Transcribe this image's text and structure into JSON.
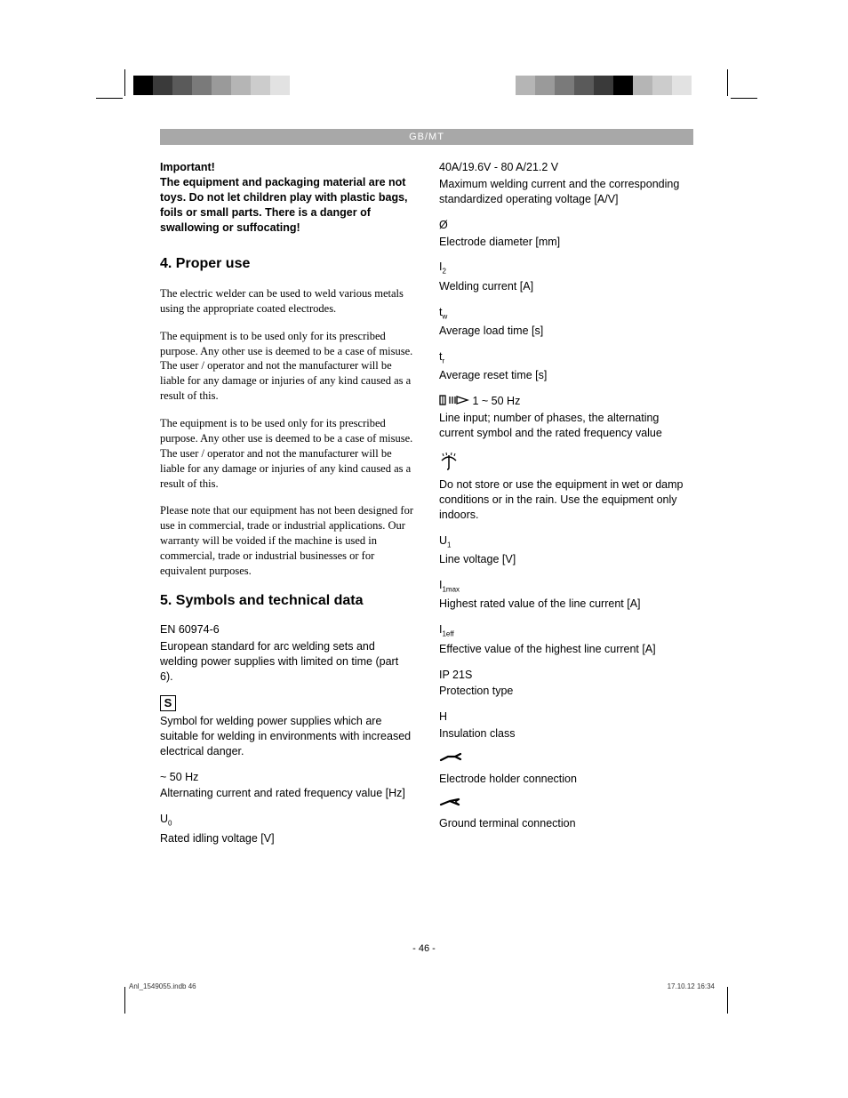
{
  "header": {
    "label": "GB/MT"
  },
  "warning": {
    "title": "Important!",
    "body": "The equipment and packaging material are not toys. Do not let children play with plastic bags, foils or small parts. There is a danger of swallowing or suffocating!"
  },
  "section4": {
    "heading": "4. Proper use",
    "p1": "The electric welder can be used to weld various metals using the appropriate coated electrodes.",
    "p2": "The equipment is to be used only for its prescribed purpose. Any other use is deemed to be a case of misuse. The user / operator and not the manufacturer will be liable for any damage or injuries of any kind caused as a result of this.",
    "p3": "The equipment is to be used only for its prescribed purpose. Any other use is deemed to be a case of misuse. The user / operator and not the manufacturer will be liable for any damage or injuries of any kind caused as a result of this.",
    "p4": "Please note that our equipment has not been designed for use in commercial, trade or industrial applications. Our warranty will be voided if the machine is used in commercial, trade or industrial businesses or for equivalent purposes."
  },
  "section5": {
    "heading": "5. Symbols and technical data",
    "en_label": "EN 60974-6",
    "en_desc": "European standard for arc welding sets and welding power supplies with limited on time (part 6).",
    "s_desc": "Symbol for welding power supplies which are suitable for welding in environments with increased electrical danger.",
    "hz_label": "~ 50 Hz",
    "hz_desc": "Alternating current and rated frequency value [Hz]",
    "u0_label": "U",
    "u0_sub": "0",
    "u0_desc": "Rated idling voltage [V]",
    "range_label": "40A/19.6V - 80 A/21.2 V",
    "range_desc": "Maximum welding current and the corresponding standardized operating voltage [A/V]",
    "dia_label": "Ø",
    "dia_desc": "Electrode diameter [mm]",
    "i2_label": "I",
    "i2_sub": "2",
    "i2_desc": "Welding current [A]",
    "tw_label": "t",
    "tw_sub": "w",
    "tw_desc": "Average load time [s]",
    "tr_label": "t",
    "tr_sub": "r",
    "tr_desc": "Average reset time [s]",
    "phase_label": " 1 ~ 50 Hz",
    "phase_desc": "Line input; number of phases, the alternating current symbol and the rated frequency value",
    "rain_desc": "Do not store or use the equipment in wet or damp conditions or in the rain. Use the equipment only indoors.",
    "u1_label": "U",
    "u1_sub": "1",
    "u1_desc": "Line voltage [V]",
    "i1max_label": "I",
    "i1max_sub": "1max",
    "i1max_desc": "Highest rated value of the line current [A]",
    "i1eff_label": "I",
    "i1eff_sub": "1eff",
    "i1eff_desc": "Effective value of the highest line current [A]",
    "ip_label": "IP 21S",
    "ip_desc": "Protection type",
    "h_label": "H",
    "h_desc": "Insulation class",
    "holder_desc": "Electrode holder connection",
    "ground_desc": "Ground terminal connection"
  },
  "footer": {
    "page": "- 46 -",
    "left": "Anl_1549055.indb   46",
    "right": "17.10.12   16:34"
  },
  "colorbars": {
    "left": [
      "#000000",
      "#3a3a3a",
      "#5a5a5a",
      "#7a7a7a",
      "#9a9a9a",
      "#b5b5b5",
      "#cccccc",
      "#e2e2e2",
      "#ffffff",
      "#ffffff"
    ],
    "right": [
      "#ffffff",
      "#b5b5b5",
      "#9a9a9a",
      "#7a7a7a",
      "#5a5a5a",
      "#3a3a3a",
      "#000000",
      "#b5b5b5",
      "#cccccc",
      "#e2e2e2"
    ]
  }
}
